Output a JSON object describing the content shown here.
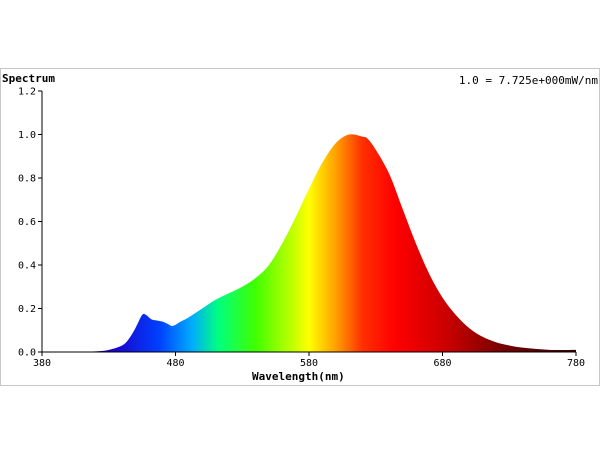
{
  "chart_data": {
    "type": "area",
    "title": "Spectrum",
    "scale_note": "1.0 = 7.725e+000mW/nm",
    "xlabel": "Wavelength(nm)",
    "ylabel": "",
    "xlim": [
      380,
      780
    ],
    "ylim": [
      0,
      1.2
    ],
    "x_ticks": [
      380,
      480,
      580,
      680,
      780
    ],
    "y_ticks": [
      "0.0",
      "0.2",
      "0.4",
      "0.6",
      "0.8",
      "1.0",
      "1.2"
    ],
    "grid": false,
    "series": [
      {
        "x": [
          380,
          400,
          420,
          430,
          440,
          445,
          450,
          455,
          458,
          462,
          466,
          470,
          474,
          478,
          484,
          490,
          500,
          510,
          520,
          530,
          540,
          550,
          560,
          570,
          580,
          590,
          600,
          610,
          620,
          624,
          630,
          640,
          650,
          660,
          670,
          680,
          690,
          700,
          710,
          720,
          730,
          740,
          760,
          780
        ],
        "y": [
          0.0,
          0.0,
          0.003,
          0.01,
          0.03,
          0.06,
          0.11,
          0.17,
          0.17,
          0.15,
          0.145,
          0.14,
          0.13,
          0.12,
          0.14,
          0.16,
          0.2,
          0.24,
          0.27,
          0.3,
          0.34,
          0.4,
          0.5,
          0.62,
          0.75,
          0.87,
          0.96,
          1.0,
          0.99,
          0.98,
          0.93,
          0.82,
          0.66,
          0.5,
          0.36,
          0.25,
          0.17,
          0.11,
          0.07,
          0.045,
          0.03,
          0.02,
          0.01,
          0.01
        ]
      }
    ]
  }
}
